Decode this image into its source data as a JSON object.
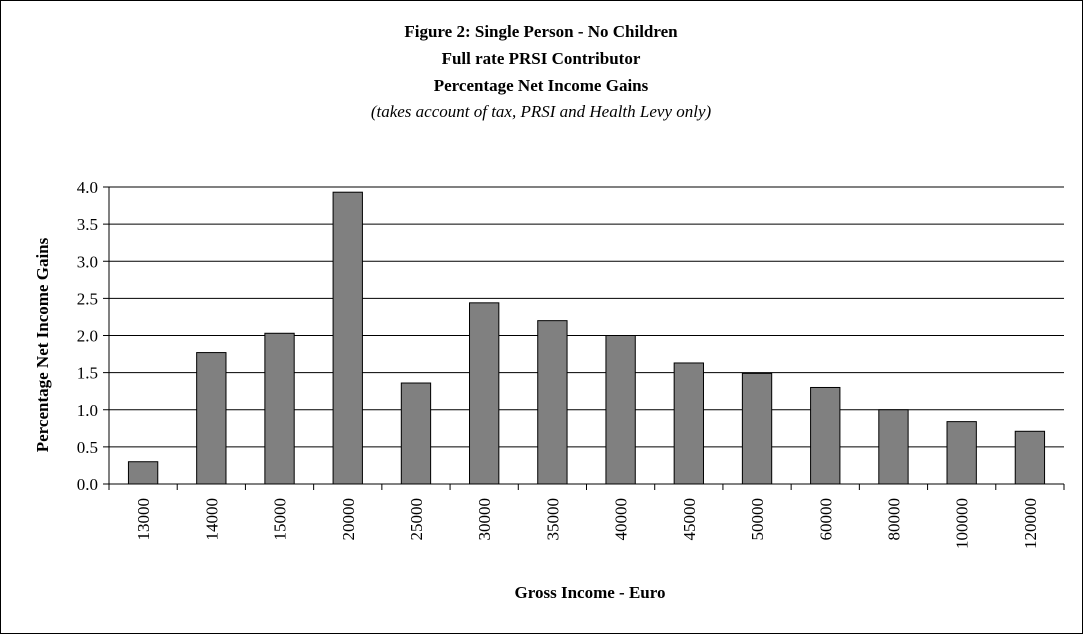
{
  "chart_data": {
    "type": "bar",
    "title_lines": [
      "Figure 2:  Single Person - No Children",
      "Full rate PRSI Contributor",
      "Percentage Net Income Gains"
    ],
    "subtitle": "(takes account of tax, PRSI and Health Levy only)",
    "xlabel": "Gross Income - Euro",
    "ylabel": "Percentage Net Income Gains",
    "categories": [
      "13000",
      "14000",
      "15000",
      "20000",
      "25000",
      "30000",
      "35000",
      "40000",
      "45000",
      "50000",
      "60000",
      "80000",
      "100000",
      "120000"
    ],
    "values": [
      0.3,
      1.77,
      2.03,
      3.93,
      1.36,
      2.44,
      2.2,
      2.0,
      1.63,
      1.49,
      1.3,
      1.0,
      0.84,
      0.71
    ],
    "ylim": [
      0,
      4.0
    ],
    "yticks": [
      "0.0",
      "0.5",
      "1.0",
      "1.5",
      "2.0",
      "2.5",
      "3.0",
      "3.5",
      "4.0"
    ],
    "grid": true,
    "legend": false,
    "bar_color": "#808080"
  }
}
